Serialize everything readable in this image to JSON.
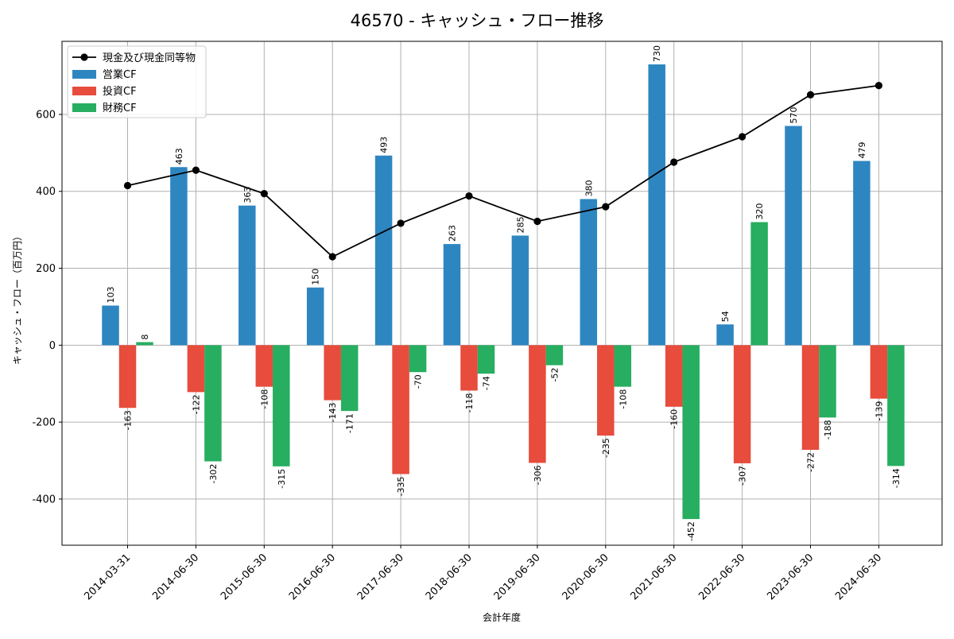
{
  "chart_data": {
    "type": "bar",
    "title": "46570 - キャッシュ・フロー推移",
    "xlabel": "会計年度",
    "ylabel": "キャッシュ・フロー（百万円）",
    "categories": [
      "2014-03-31",
      "2014-06-30",
      "2015-06-30",
      "2016-06-30",
      "2017-06-30",
      "2018-06-30",
      "2019-06-30",
      "2020-06-30",
      "2021-06-30",
      "2022-06-30",
      "2023-06-30",
      "2024-06-30"
    ],
    "ylim": [
      -520,
      790
    ],
    "yticks": [
      -400,
      -200,
      0,
      200,
      400,
      600
    ],
    "grid": true,
    "legend_position": "top-left",
    "series": [
      {
        "name": "営業CF",
        "kind": "bar",
        "color": "#2e86c1",
        "values": [
          103,
          463,
          363,
          150,
          493,
          263,
          285,
          380,
          730,
          54,
          570,
          479
        ]
      },
      {
        "name": "投資CF",
        "kind": "bar",
        "color": "#e74c3c",
        "values": [
          -163,
          -122,
          -108,
          -143,
          -335,
          -118,
          -306,
          -235,
          -160,
          -307,
          -272,
          -139
        ]
      },
      {
        "name": "財務CF",
        "kind": "bar",
        "color": "#27ae60",
        "values": [
          8,
          -302,
          -315,
          -171,
          -70,
          -74,
          -52,
          -108,
          -452,
          320,
          -188,
          -314
        ]
      },
      {
        "name": "現金及び現金同等物",
        "kind": "line",
        "color": "#000000",
        "values": [
          415,
          455,
          394,
          230,
          317,
          388,
          322,
          360,
          476,
          542,
          651,
          675
        ]
      }
    ]
  }
}
